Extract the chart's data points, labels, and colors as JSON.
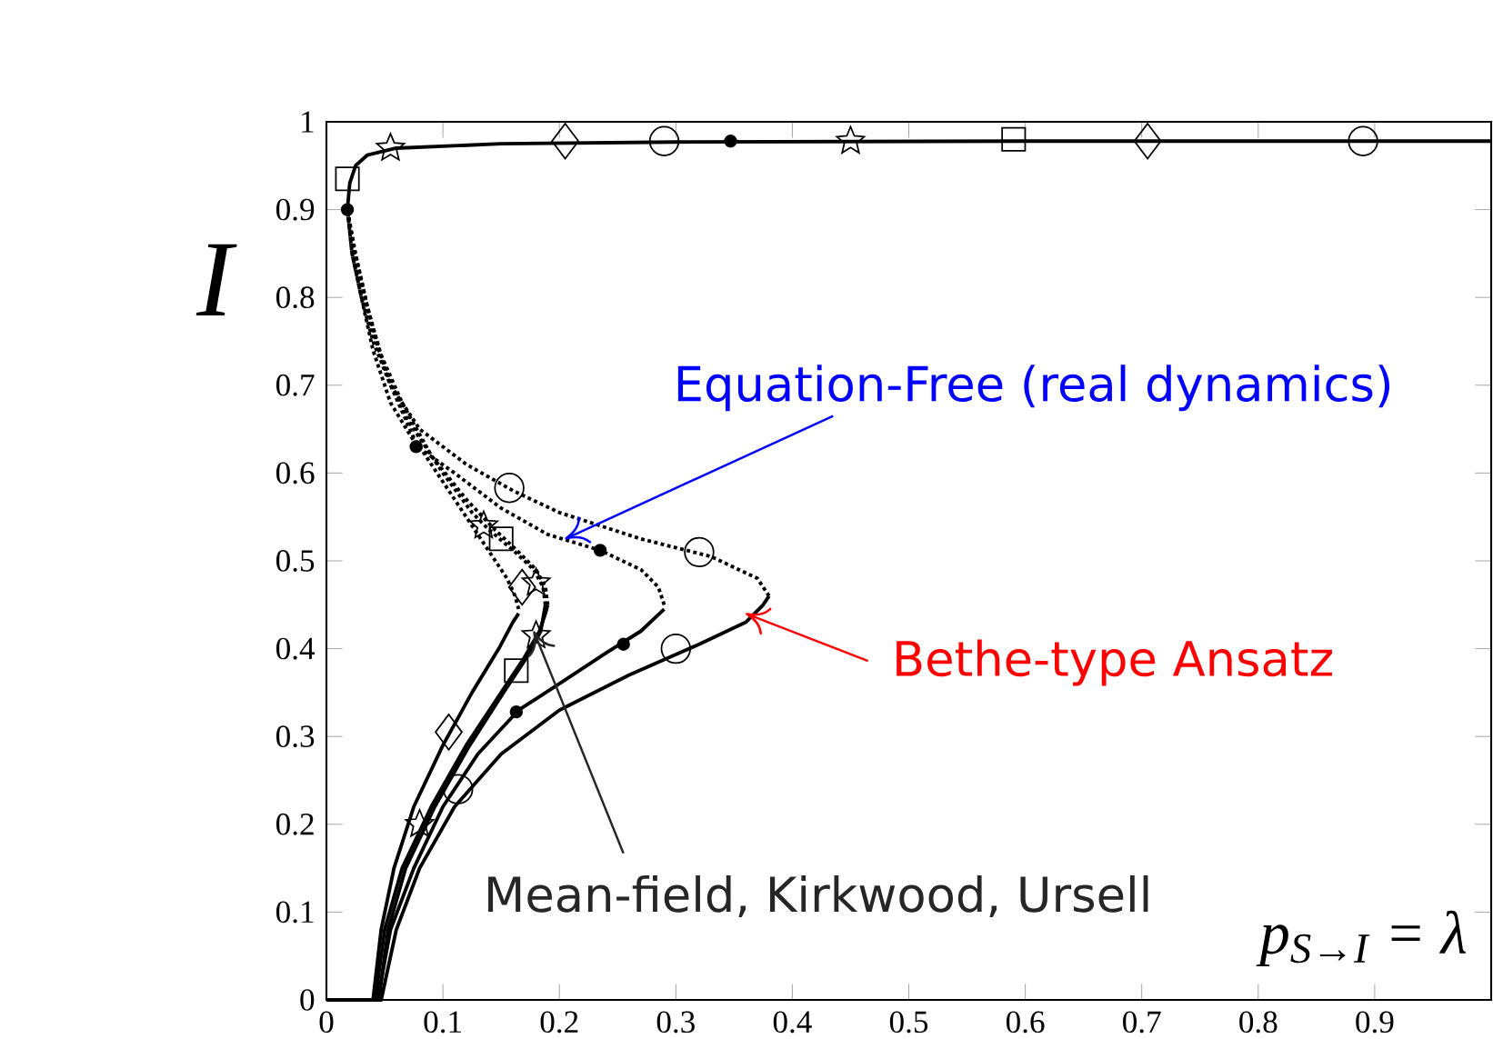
{
  "chart_data": {
    "type": "line",
    "xlabel": "p$_{S→I}$ = λ",
    "ylabel": "I",
    "xlim": [
      0,
      1
    ],
    "ylim": [
      0,
      1
    ],
    "xticks": [
      0,
      0.1,
      0.2,
      0.3,
      0.4,
      0.5,
      0.6,
      0.7,
      0.8,
      0.9
    ],
    "yticks": [
      0,
      0.1,
      0.2,
      0.3,
      0.4,
      0.5,
      0.6,
      0.7,
      0.8,
      0.9,
      1
    ],
    "series": [
      {
        "color": "#000000",
        "line_style": "solid",
        "marker": "none",
        "x": [
          0,
          0.047,
          0.06,
          0.08,
          0.11,
          0.15,
          0.2,
          0.26,
          0.32,
          0.36,
          0.375,
          0.38
        ],
        "values": [
          0,
          0,
          0.08,
          0.15,
          0.22,
          0.28,
          0.33,
          0.37,
          0.405,
          0.43,
          0.45,
          0.46
        ]
      },
      {
        "color": "#000000",
        "line_style": "dotted",
        "marker": "none",
        "x": [
          0.38,
          0.37,
          0.33,
          0.27,
          0.2,
          0.16,
          0.12,
          0.08,
          0.055,
          0.04,
          0.03,
          0.022,
          0.018
        ],
        "values": [
          0.46,
          0.48,
          0.505,
          0.525,
          0.555,
          0.58,
          0.61,
          0.65,
          0.7,
          0.75,
          0.8,
          0.85,
          0.9
        ]
      },
      {
        "type": "scatter",
        "color": "#000000",
        "marker": "circle",
        "x": [
          0.113,
          0.3,
          0.32,
          0.157,
          0.29,
          0.89
        ],
        "values": [
          0.24,
          0.4,
          0.51,
          0.583,
          0.978,
          0.978
        ]
      },
      {
        "color": "#000000",
        "line_style": "solid",
        "marker": "none",
        "x": [
          0,
          0.044,
          0.055,
          0.075,
          0.1,
          0.13,
          0.165,
          0.2,
          0.24,
          0.27,
          0.29
        ],
        "values": [
          0,
          0,
          0.08,
          0.15,
          0.22,
          0.28,
          0.33,
          0.36,
          0.395,
          0.42,
          0.445
        ]
      },
      {
        "color": "#000000",
        "line_style": "dotted",
        "marker": "none",
        "x": [
          0.29,
          0.285,
          0.27,
          0.235,
          0.19,
          0.15,
          0.11,
          0.078,
          0.055,
          0.04,
          0.03,
          0.022,
          0.018
        ],
        "values": [
          0.45,
          0.47,
          0.49,
          0.512,
          0.53,
          0.56,
          0.6,
          0.63,
          0.68,
          0.74,
          0.8,
          0.85,
          0.9
        ]
      },
      {
        "type": "scatter",
        "color": "#000000",
        "marker": "dot",
        "x": [
          0.163,
          0.255,
          0.235,
          0.077,
          0.018,
          0.347
        ],
        "values": [
          0.328,
          0.405,
          0.512,
          0.63,
          0.9,
          0.978
        ]
      },
      {
        "color": "#000000",
        "line_style": "solid",
        "marker": "none",
        "x": [
          0,
          0.042,
          0.05,
          0.065,
          0.09,
          0.12,
          0.15,
          0.17,
          0.183,
          0.188,
          0.19
        ],
        "values": [
          0,
          0,
          0.08,
          0.15,
          0.22,
          0.29,
          0.35,
          0.39,
          0.42,
          0.44,
          0.45
        ]
      },
      {
        "color": "#000000",
        "line_style": "dotted",
        "marker": "none",
        "x": [
          0.19,
          0.188,
          0.18,
          0.165,
          0.145,
          0.12,
          0.09,
          0.065,
          0.045,
          0.033,
          0.024,
          0.018
        ],
        "values": [
          0.45,
          0.47,
          0.49,
          0.51,
          0.535,
          0.57,
          0.62,
          0.68,
          0.74,
          0.8,
          0.85,
          0.9
        ]
      },
      {
        "type": "scatter",
        "color": "#000000",
        "marker": "star",
        "x": [
          0.08,
          0.18,
          0.18,
          0.135,
          0.055,
          0.45
        ],
        "values": [
          0.2,
          0.415,
          0.475,
          0.54,
          0.97,
          0.978
        ]
      },
      {
        "color": "#000000",
        "line_style": "solid",
        "marker": "none",
        "x": [
          0,
          0.045,
          0.053,
          0.068,
          0.093,
          0.123,
          0.152,
          0.172,
          0.184,
          0.188
        ],
        "values": [
          0,
          0,
          0.08,
          0.15,
          0.22,
          0.29,
          0.35,
          0.39,
          0.42,
          0.45
        ]
      },
      {
        "color": "#000000",
        "line_style": "dotted",
        "marker": "none",
        "x": [
          0.188,
          0.186,
          0.178,
          0.162,
          0.14,
          0.125,
          0.1,
          0.07,
          0.05,
          0.035,
          0.025,
          0.018
        ],
        "values": [
          0.45,
          0.47,
          0.49,
          0.51,
          0.535,
          0.555,
          0.6,
          0.66,
          0.72,
          0.79,
          0.85,
          0.9
        ]
      },
      {
        "type": "scatter",
        "color": "#000000",
        "marker": "square",
        "x": [
          0.163,
          0.15,
          0.018,
          0.59
        ],
        "values": [
          0.375,
          0.525,
          0.935,
          0.98
        ]
      },
      {
        "color": "#000000",
        "line_style": "solid",
        "marker": "none",
        "x": [
          0,
          0.04,
          0.047,
          0.058,
          0.075,
          0.1,
          0.125,
          0.148,
          0.16,
          0.165
        ],
        "values": [
          0,
          0,
          0.08,
          0.15,
          0.22,
          0.29,
          0.35,
          0.4,
          0.43,
          0.44
        ]
      },
      {
        "color": "#000000",
        "line_style": "dotted",
        "marker": "none",
        "x": [
          0.165,
          0.162,
          0.155,
          0.14,
          0.12,
          0.1,
          0.075,
          0.055,
          0.04,
          0.03,
          0.022,
          0.018
        ],
        "values": [
          0.445,
          0.46,
          0.48,
          0.51,
          0.55,
          0.59,
          0.64,
          0.7,
          0.76,
          0.82,
          0.86,
          0.9
        ]
      },
      {
        "type": "scatter",
        "color": "#000000",
        "marker": "diamond",
        "x": [
          0.105,
          0.168,
          0.205,
          0.705
        ],
        "values": [
          0.305,
          0.47,
          0.978,
          0.978
        ]
      },
      {
        "color": "#000000",
        "line_style": "solid",
        "marker": "none",
        "x": [
          0.018,
          0.02,
          0.025,
          0.035,
          0.06,
          0.15,
          0.3,
          0.6,
          1
        ],
        "values": [
          0.9,
          0.93,
          0.95,
          0.962,
          0.97,
          0.975,
          0.977,
          0.978,
          0.978
        ]
      }
    ],
    "annotations": [
      {
        "text": "Equation-Free (real dynamics)",
        "x": 0.205,
        "y": 0.525
      },
      {
        "text": "Bethe-type Ansatz",
        "x": 0.36,
        "y": 0.44
      },
      {
        "text": "Mean-field, Kirkwood, Ursell",
        "x": 0.178,
        "y": 0.42
      }
    ]
  }
}
